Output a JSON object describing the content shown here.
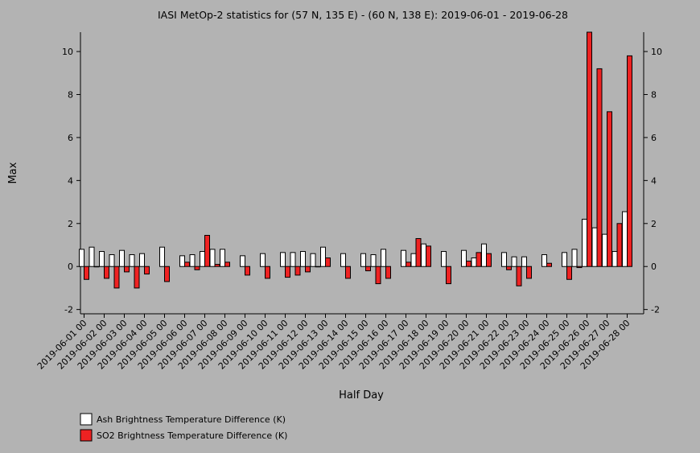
{
  "chart_data": {
    "type": "bar",
    "title": "IASI MetOp-2 statistics for (57 N, 135 E) - (60 N, 138 E): 2019-06-01 - 2019-06-28",
    "xlabel": "Half Day",
    "ylabel": "Max",
    "ylim": [
      -2.2,
      10.9
    ],
    "yticks": [
      -2,
      0,
      2,
      4,
      6,
      8,
      10
    ],
    "grid": false,
    "legend_placement": "bottom-left",
    "tick_labels": [
      "2019-06-01 00",
      "2019-06-02 00",
      "2019-06-03 00",
      "2019-06-04 00",
      "2019-06-05 00",
      "2019-06-06 00",
      "2019-06-07 00",
      "2019-06-08 00",
      "2019-06-09 00",
      "2019-06-10 00",
      "2019-06-11 00",
      "2019-06-12 00",
      "2019-06-13 00",
      "2019-06-14 00",
      "2019-06-15 00",
      "2019-06-16 00",
      "2019-06-17 00",
      "2019-06-18 00",
      "2019-06-19 00",
      "2019-06-20 00",
      "2019-06-21 00",
      "2019-06-22 00",
      "2019-06-23 00",
      "2019-06-24 00",
      "2019-06-25 00",
      "2019-06-26 00",
      "2019-06-27 00",
      "2019-06-28 00"
    ],
    "series": [
      {
        "name": "Ash Brightness Temperature Difference (K)",
        "color": "#ffffff",
        "values": [
          0.8,
          0.9,
          0.7,
          0.55,
          0.75,
          0.55,
          0.6,
          null,
          0.9,
          null,
          0.5,
          0.55,
          0.7,
          0.8,
          0.8,
          null,
          0.5,
          null,
          0.6,
          null,
          0.65,
          0.65,
          0.7,
          0.6,
          0.9,
          null,
          0.6,
          null,
          0.6,
          0.55,
          0.8,
          null,
          0.75,
          0.6,
          1.05,
          null,
          0.7,
          null,
          0.75,
          0.4,
          1.05,
          null,
          0.65,
          0.45,
          0.45,
          null,
          0.55,
          null,
          0.65,
          0.8,
          2.2,
          1.8,
          1.5,
          0.7,
          2.55,
          null
        ]
      },
      {
        "name": "SO2 Brightness Temperature Difference (K)",
        "color": "#ee2222",
        "values": [
          -0.6,
          0.0,
          -0.55,
          -1.0,
          -0.25,
          -1.0,
          -0.35,
          null,
          -0.7,
          null,
          0.2,
          -0.15,
          1.45,
          0.1,
          0.2,
          null,
          -0.4,
          null,
          -0.55,
          null,
          -0.5,
          -0.4,
          -0.25,
          0.0,
          0.4,
          null,
          -0.55,
          null,
          -0.2,
          -0.8,
          -0.55,
          null,
          0.2,
          1.3,
          0.95,
          null,
          -0.8,
          null,
          0.25,
          0.65,
          0.6,
          null,
          -0.15,
          -0.9,
          -0.55,
          null,
          0.15,
          null,
          -0.6,
          -0.05,
          10.9,
          9.2,
          7.2,
          2.0,
          9.8,
          null
        ]
      }
    ]
  }
}
